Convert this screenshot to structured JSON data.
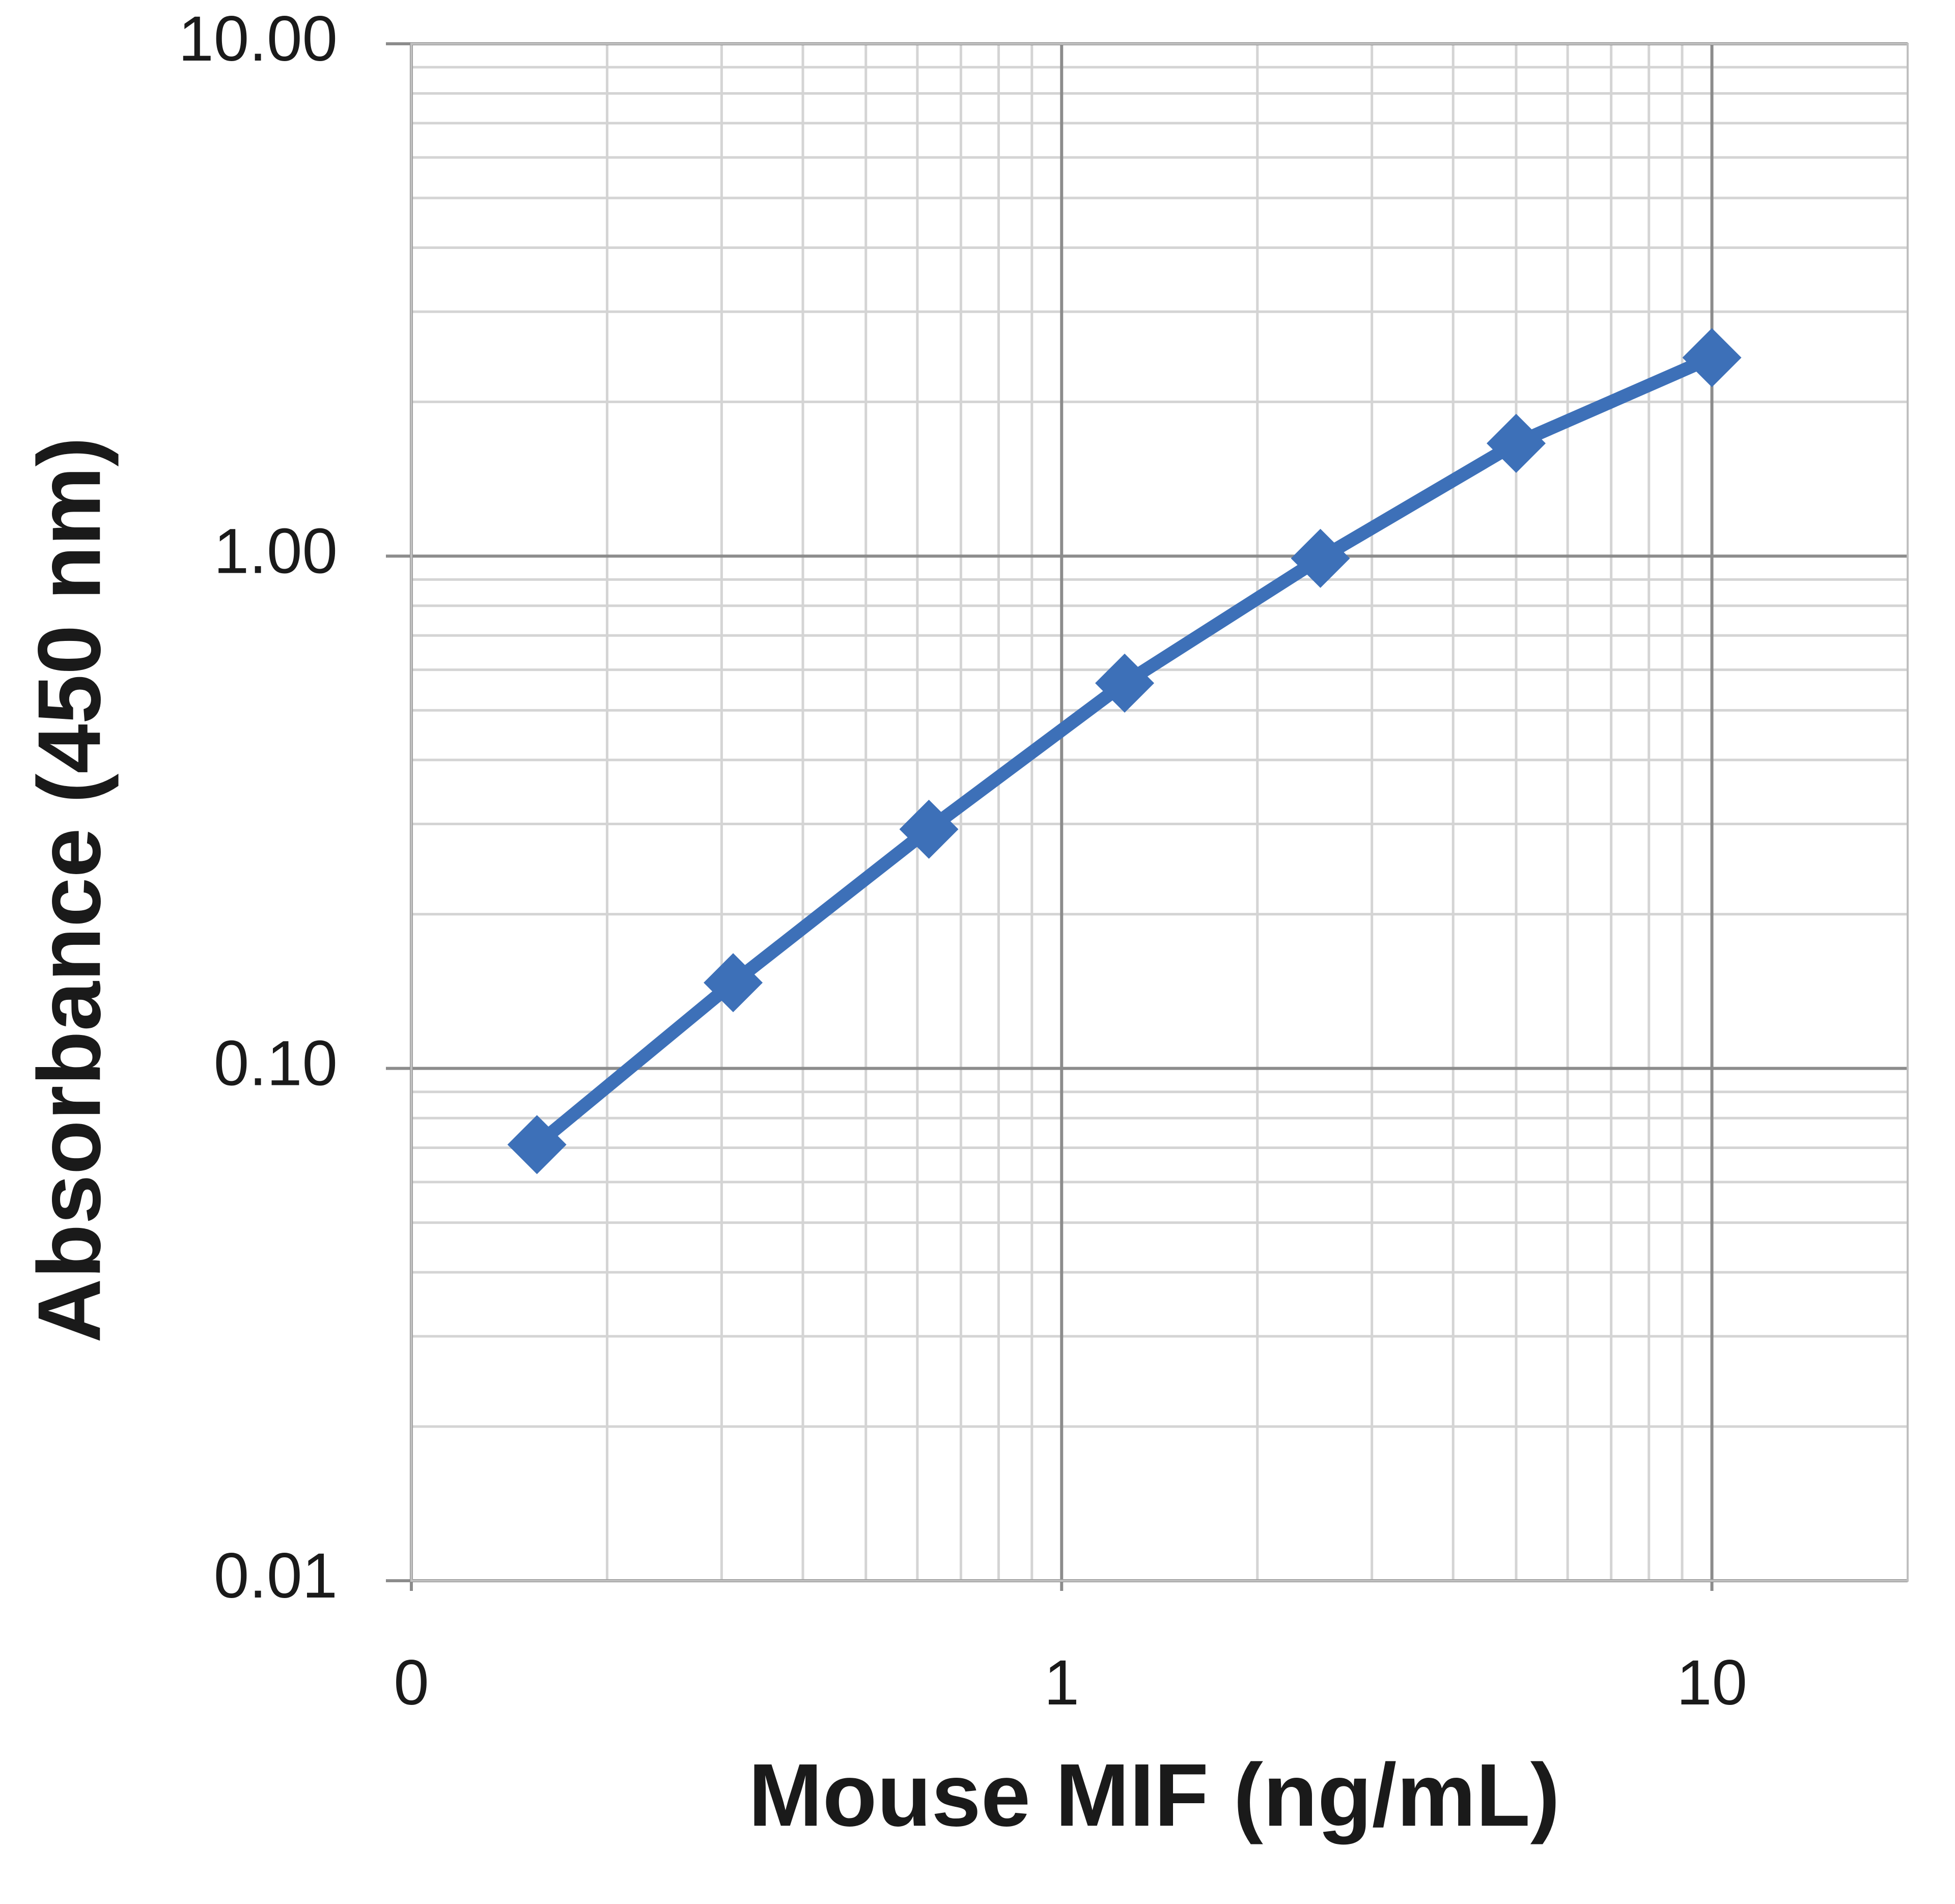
{
  "chart_data": {
    "type": "line",
    "x_label": "Mouse MIF (ng/mL)",
    "y_label": "Absorbance  (450 nm)",
    "x": [
      0.156,
      0.3125,
      0.625,
      1.25,
      2.5,
      5,
      10
    ],
    "series": [
      {
        "color": "#3d70b8",
        "values": [
          0.071,
          0.147,
          0.293,
          0.565,
          0.99,
          1.66,
          2.44
        ]
      }
    ],
    "xscale": "log",
    "yscale": "log",
    "xlim": [
      0.1,
      20
    ],
    "ylim": [
      0.01,
      10
    ],
    "xticks": [
      {
        "value": 0.1,
        "label": "0"
      },
      1,
      10
    ],
    "yticks": [
      {
        "value": 0.01,
        "label": "0.01"
      },
      {
        "value": 0.1,
        "label": "0.10"
      },
      {
        "value": 1,
        "label": "1.00"
      },
      {
        "value": 10,
        "label": "10.00"
      }
    ],
    "grid": true,
    "minor_grid": true,
    "marker": "diamond"
  }
}
